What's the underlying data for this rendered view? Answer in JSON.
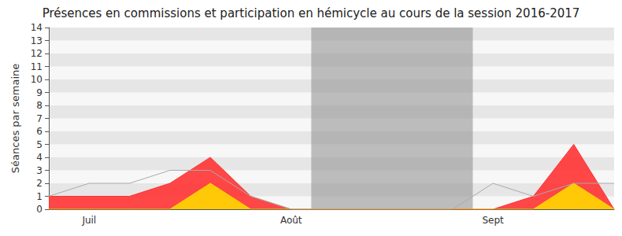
{
  "chart_data": {
    "type": "area",
    "title": "Présences en commissions et participation en hémicycle au cours de la session 2016-2017",
    "y_label": "Séances par semaine",
    "categories": [
      null,
      "Juil",
      null,
      null,
      null,
      null,
      "Août",
      null,
      null,
      null,
      null,
      "Sept",
      null,
      null,
      null
    ],
    "series": [
      {
        "type": "area",
        "color": "#ff3333",
        "values": [
          1,
          1,
          1,
          2,
          4,
          1,
          0,
          0,
          0,
          0,
          0,
          0,
          1,
          5,
          0
        ]
      },
      {
        "type": "area",
        "color": "#ffd700",
        "values": [
          0,
          0,
          0,
          0,
          2,
          0,
          0,
          0,
          0,
          0,
          0,
          0,
          0,
          2,
          0
        ]
      },
      {
        "type": "line",
        "color": "#aaaaaa",
        "values": [
          1,
          2,
          2,
          3,
          3,
          1,
          0,
          0,
          0,
          0,
          0,
          2,
          1,
          2,
          2
        ]
      }
    ],
    "ylim": [
      0,
      14
    ],
    "yticks": [
      0,
      1,
      2,
      3,
      4,
      5,
      6,
      7,
      8,
      9,
      10,
      11,
      12,
      13,
      14
    ],
    "grid": true,
    "stacked": false,
    "shaded_weeks": [
      7,
      8,
      9,
      10
    ]
  }
}
